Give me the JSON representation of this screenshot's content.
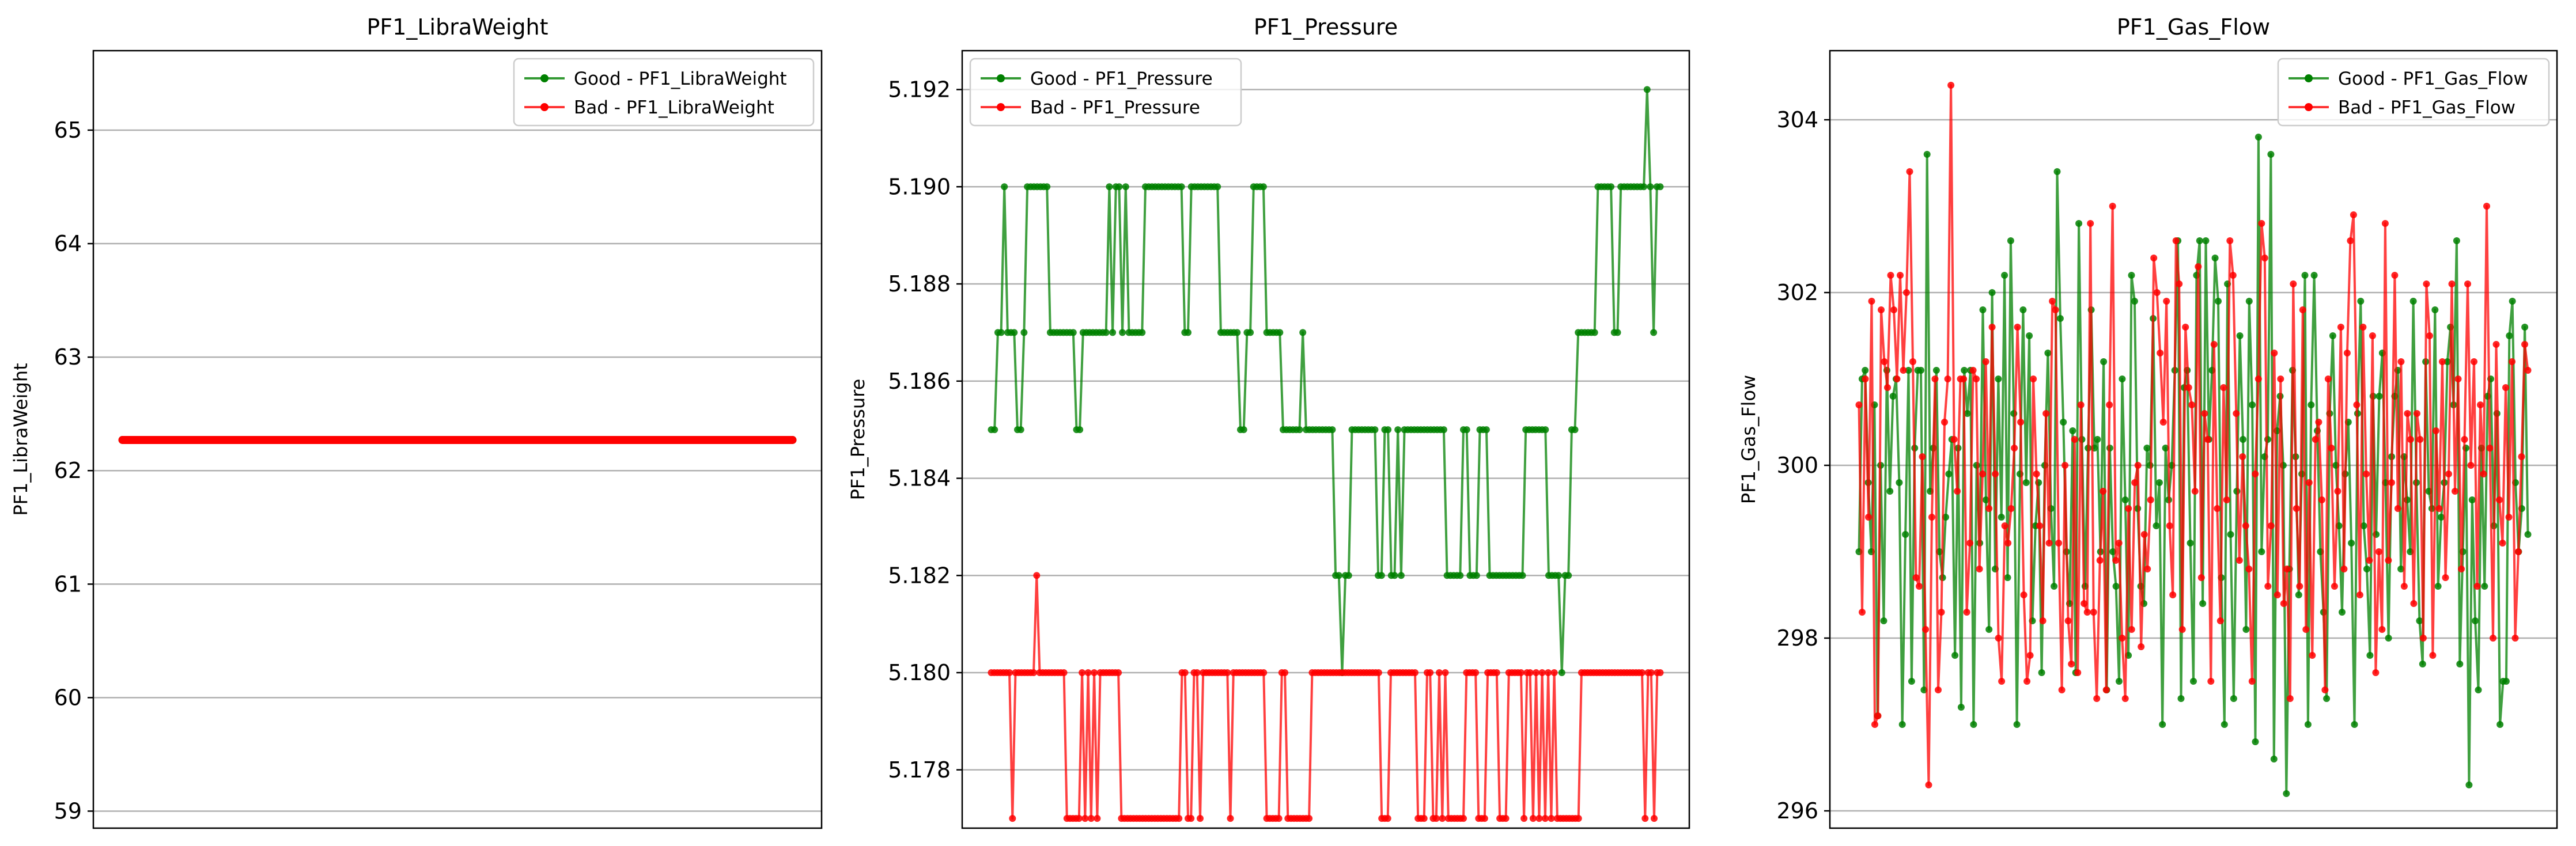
{
  "chart_data": [
    {
      "type": "line",
      "title": "PF1_LibraWeight",
      "xlabel": "",
      "ylabel": "PF1_LibraWeight",
      "ylim": [
        58.85,
        65.7
      ],
      "yticks": [
        59,
        60,
        61,
        62,
        63,
        64,
        65
      ],
      "ytick_labels": [
        "59",
        "60",
        "61",
        "62",
        "63",
        "64",
        "65"
      ],
      "x_range": [
        0,
        200
      ],
      "grid": "horizontal",
      "legend": "top-right",
      "series": [
        {
          "name": "Good - PF1_LibraWeight",
          "color": "#008000",
          "x": [
            0,
            200
          ],
          "values": [
            62.27,
            62.27
          ]
        },
        {
          "name": "Bad - PF1_LibraWeight",
          "color": "#ff0000",
          "x": [
            0,
            200
          ],
          "values": [
            62.27,
            62.27
          ]
        }
      ]
    },
    {
      "type": "line",
      "title": "PF1_Pressure",
      "xlabel": "",
      "ylabel": "PF1_Pressure",
      "ylim": [
        5.1768,
        5.1928
      ],
      "yticks": [
        5.178,
        5.18,
        5.182,
        5.184,
        5.186,
        5.188,
        5.19,
        5.192
      ],
      "ytick_labels": [
        "5.178",
        "5.180",
        "5.182",
        "5.184",
        "5.186",
        "5.188",
        "5.190",
        "5.192"
      ],
      "x_range": [
        0,
        200
      ],
      "grid": "horizontal",
      "legend": "top-left",
      "series": [
        {
          "name": "Good - PF1_Pressure",
          "color": "#008000",
          "values": [
            5.185,
            5.185,
            5.187,
            5.187,
            5.19,
            5.187,
            5.187,
            5.187,
            5.185,
            5.185,
            5.187,
            5.19,
            5.19,
            5.19,
            5.19,
            5.19,
            5.19,
            5.19,
            5.187,
            5.187,
            5.187,
            5.187,
            5.187,
            5.187,
            5.187,
            5.187,
            5.185,
            5.185,
            5.187,
            5.187,
            5.187,
            5.187,
            5.187,
            5.187,
            5.187,
            5.187,
            5.19,
            5.187,
            5.19,
            5.19,
            5.187,
            5.19,
            5.187,
            5.187,
            5.187,
            5.187,
            5.187,
            5.19,
            5.19,
            5.19,
            5.19,
            5.19,
            5.19,
            5.19,
            5.19,
            5.19,
            5.19,
            5.19,
            5.19,
            5.187,
            5.187,
            5.19,
            5.19,
            5.19,
            5.19,
            5.19,
            5.19,
            5.19,
            5.19,
            5.19,
            5.187,
            5.187,
            5.187,
            5.187,
            5.187,
            5.187,
            5.185,
            5.185,
            5.187,
            5.187,
            5.19,
            5.19,
            5.19,
            5.19,
            5.187,
            5.187,
            5.187,
            5.187,
            5.187,
            5.185,
            5.185,
            5.185,
            5.185,
            5.185,
            5.185,
            5.187,
            5.185,
            5.185,
            5.185,
            5.185,
            5.185,
            5.185,
            5.185,
            5.185,
            5.185,
            5.182,
            5.182,
            5.18,
            5.182,
            5.182,
            5.185,
            5.185,
            5.185,
            5.185,
            5.185,
            5.185,
            5.185,
            5.185,
            5.182,
            5.182,
            5.185,
            5.185,
            5.182,
            5.182,
            5.185,
            5.182,
            5.185,
            5.185,
            5.185,
            5.185,
            5.185,
            5.185,
            5.185,
            5.185,
            5.185,
            5.185,
            5.185,
            5.185,
            5.185,
            5.182,
            5.182,
            5.182,
            5.182,
            5.182,
            5.185,
            5.185,
            5.182,
            5.182,
            5.182,
            5.185,
            5.185,
            5.185,
            5.182,
            5.182,
            5.182,
            5.182,
            5.182,
            5.182,
            5.182,
            5.182,
            5.182,
            5.182,
            5.182,
            5.185,
            5.185,
            5.185,
            5.185,
            5.185,
            5.185,
            5.185,
            5.182,
            5.182,
            5.182,
            5.182,
            5.18,
            5.182,
            5.182,
            5.185,
            5.185,
            5.187,
            5.187,
            5.187,
            5.187,
            5.187,
            5.187,
            5.19,
            5.19,
            5.19,
            5.19,
            5.19,
            5.187,
            5.187,
            5.19,
            5.19,
            5.19,
            5.19,
            5.19,
            5.19,
            5.19,
            5.19,
            5.192,
            5.19,
            5.187,
            5.19,
            5.19
          ]
        },
        {
          "name": "Bad - PF1_Pressure",
          "color": "#ff0000",
          "values": [
            5.18,
            5.18,
            5.18,
            5.18,
            5.18,
            5.18,
            5.18,
            5.177,
            5.18,
            5.18,
            5.18,
            5.18,
            5.18,
            5.18,
            5.18,
            5.182,
            5.18,
            5.18,
            5.18,
            5.18,
            5.18,
            5.18,
            5.18,
            5.18,
            5.18,
            5.177,
            5.177,
            5.177,
            5.177,
            5.177,
            5.18,
            5.177,
            5.18,
            5.177,
            5.18,
            5.177,
            5.18,
            5.18,
            5.18,
            5.18,
            5.18,
            5.18,
            5.18,
            5.177,
            5.177,
            5.177,
            5.177,
            5.177,
            5.177,
            5.177,
            5.177,
            5.177,
            5.177,
            5.177,
            5.177,
            5.177,
            5.177,
            5.177,
            5.177,
            5.177,
            5.177,
            5.177,
            5.177,
            5.18,
            5.18,
            5.177,
            5.177,
            5.18,
            5.18,
            5.177,
            5.18,
            5.18,
            5.18,
            5.18,
            5.18,
            5.18,
            5.18,
            5.18,
            5.18,
            5.177,
            5.18,
            5.18,
            5.18,
            5.18,
            5.18,
            5.18,
            5.18,
            5.18,
            5.18,
            5.18,
            5.18,
            5.177,
            5.177,
            5.177,
            5.177,
            5.177,
            5.18,
            5.18,
            5.177,
            5.177,
            5.177,
            5.177,
            5.177,
            5.177,
            5.177,
            5.177,
            5.18,
            5.18,
            5.18,
            5.18,
            5.18,
            5.18,
            5.18,
            5.18,
            5.18,
            5.18,
            5.18,
            5.18,
            5.18,
            5.18,
            5.18,
            5.18,
            5.18,
            5.18,
            5.18,
            5.18,
            5.18,
            5.18,
            5.18,
            5.177,
            5.177,
            5.177,
            5.18,
            5.18,
            5.18,
            5.18,
            5.18,
            5.18,
            5.18,
            5.18,
            5.18,
            5.177,
            5.177,
            5.177,
            5.18,
            5.18,
            5.177,
            5.177,
            5.18,
            5.177,
            5.18,
            5.177,
            5.177,
            5.177,
            5.177,
            5.177,
            5.177,
            5.18,
            5.18,
            5.18,
            5.18,
            5.177,
            5.177,
            5.177,
            5.18,
            5.18,
            5.18,
            5.18,
            5.177,
            5.177,
            5.177,
            5.18,
            5.18,
            5.18,
            5.18,
            5.18,
            5.177,
            5.18,
            5.18,
            5.177,
            5.18,
            5.177,
            5.18,
            5.177,
            5.18,
            5.177,
            5.18,
            5.177,
            5.177,
            5.177,
            5.177,
            5.177,
            5.177,
            5.177,
            5.177,
            5.18,
            5.18,
            5.18,
            5.18,
            5.18,
            5.18,
            5.18,
            5.18,
            5.18,
            5.18,
            5.18,
            5.18,
            5.18,
            5.18,
            5.18,
            5.18,
            5.18,
            5.18,
            5.18,
            5.18,
            5.18,
            5.177,
            5.18,
            5.18,
            5.177,
            5.18,
            5.18
          ]
        }
      ]
    },
    {
      "type": "line",
      "title": "PF1_Gas_Flow",
      "xlabel": "",
      "ylabel": "PF1_Gas_Flow",
      "ylim": [
        295.8,
        304.8
      ],
      "yticks": [
        296,
        298,
        300,
        302,
        304
      ],
      "ytick_labels": [
        "296",
        "298",
        "300",
        "302",
        "304"
      ],
      "x_range": [
        0,
        200
      ],
      "grid": "horizontal",
      "legend": "top-right",
      "series": [
        {
          "name": "Good - PF1_Gas_Flow",
          "color": "#008000",
          "values": [
            299.0,
            301.0,
            301.1,
            299.8,
            299.0,
            300.7,
            297.1,
            300.0,
            298.2,
            301.1,
            299.7,
            300.8,
            301.0,
            299.8,
            297.0,
            299.2,
            301.1,
            297.5,
            300.2,
            301.1,
            301.1,
            297.4,
            303.6,
            299.7,
            300.2,
            301.1,
            299.0,
            298.7,
            299.4,
            299.9,
            300.3,
            297.8,
            300.2,
            297.2,
            301.1,
            300.6,
            301.1,
            297.0,
            300.0,
            299.1,
            301.8,
            299.6,
            298.1,
            302.0,
            298.8,
            301.0,
            299.4,
            302.2,
            298.7,
            302.6,
            300.6,
            297.0,
            299.9,
            301.8,
            299.8,
            301.5,
            298.2,
            299.3,
            299.8,
            297.6,
            300.0,
            301.3,
            299.5,
            298.6,
            303.4,
            301.7,
            300.5,
            299.0,
            298.4,
            300.4,
            297.6,
            302.8,
            300.3,
            298.6,
            300.2,
            301.8,
            300.2,
            300.3,
            299.0,
            301.2,
            297.4,
            300.2,
            299.0,
            298.6,
            297.5,
            301.0,
            299.6,
            297.8,
            302.2,
            301.9,
            299.5,
            298.6,
            298.4,
            300.2,
            300.0,
            301.7,
            299.3,
            299.8,
            297.0,
            300.2,
            299.6,
            300.0,
            301.1,
            302.6,
            297.3,
            300.9,
            301.1,
            299.1,
            297.5,
            302.2,
            302.6,
            298.4,
            302.6,
            300.3,
            301.1,
            302.4,
            301.9,
            298.7,
            297.0,
            302.1,
            299.2,
            297.3,
            299.7,
            301.5,
            300.3,
            298.1,
            301.9,
            300.7,
            296.8,
            303.8,
            299.0,
            300.1,
            300.3,
            303.6,
            296.6,
            300.4,
            300.8,
            300.0,
            296.2,
            298.8,
            301.1,
            300.1,
            298.5,
            299.9,
            302.2,
            297.0,
            300.7,
            302.2,
            300.4,
            299.0,
            298.3,
            297.3,
            300.6,
            301.5,
            300.0,
            299.3,
            298.3,
            299.9,
            300.5,
            299.1,
            297.0,
            300.6,
            301.9,
            299.3,
            298.8,
            297.8,
            300.8,
            299.2,
            300.8,
            301.3,
            299.8,
            298.0,
            300.1,
            300.8,
            301.1,
            298.8,
            300.1,
            299.6,
            299.0,
            301.9,
            299.8,
            298.2,
            297.7,
            301.2,
            299.7,
            299.5,
            301.8,
            298.6,
            299.4,
            299.8,
            301.2,
            301.6,
            300.7,
            302.6,
            297.7,
            299.0,
            300.2,
            296.3,
            299.6,
            298.2,
            297.4,
            300.2,
            298.6,
            300.8,
            301.0,
            299.3,
            300.6,
            297.0,
            297.5,
            297.5,
            301.5,
            301.9,
            299.8,
            299.0,
            299.5,
            301.6,
            299.2
          ]
        },
        {
          "name": "Bad - PF1_Gas_Flow",
          "color": "#ff0000",
          "values": [
            300.7,
            298.3,
            301.0,
            299.4,
            301.9,
            297.0,
            297.1,
            301.8,
            301.2,
            300.9,
            302.2,
            301.8,
            301.0,
            302.2,
            301.1,
            302.0,
            303.4,
            301.2,
            298.7,
            298.6,
            300.1,
            298.1,
            296.3,
            299.4,
            301.0,
            297.4,
            298.3,
            300.5,
            301.0,
            304.4,
            300.3,
            299.7,
            301.0,
            301.0,
            298.3,
            299.1,
            301.1,
            301.0,
            298.8,
            299.9,
            301.2,
            299.5,
            301.6,
            299.9,
            298.0,
            297.5,
            299.3,
            299.1,
            299.5,
            300.2,
            301.6,
            300.5,
            298.5,
            297.5,
            297.8,
            301.0,
            299.9,
            299.3,
            298.2,
            300.6,
            299.1,
            301.9,
            301.8,
            299.1,
            297.4,
            300.0,
            298.2,
            297.7,
            300.3,
            297.6,
            300.7,
            298.4,
            298.3,
            302.8,
            298.3,
            297.3,
            298.9,
            299.7,
            297.4,
            300.7,
            303.0,
            298.9,
            299.1,
            298.0,
            297.3,
            299.5,
            298.1,
            299.8,
            300.0,
            297.9,
            299.2,
            298.8,
            299.6,
            302.4,
            302.0,
            301.3,
            300.5,
            301.9,
            299.3,
            298.5,
            302.6,
            302.1,
            298.1,
            301.6,
            300.9,
            300.7,
            299.7,
            302.3,
            298.7,
            300.6,
            300.3,
            297.5,
            301.4,
            299.5,
            298.2,
            300.9,
            299.6,
            302.6,
            302.2,
            300.6,
            298.9,
            300.1,
            299.3,
            298.8,
            297.5,
            299.9,
            301.0,
            302.8,
            302.4,
            298.6,
            299.3,
            301.3,
            298.5,
            301.0,
            298.4,
            298.8,
            297.3,
            302.1,
            299.5,
            298.6,
            301.8,
            298.1,
            299.8,
            297.8,
            300.3,
            300.5,
            299.6,
            297.4,
            301.0,
            300.2,
            298.6,
            299.7,
            301.6,
            298.8,
            301.3,
            302.6,
            302.9,
            300.7,
            298.5,
            301.6,
            299.9,
            298.9,
            301.5,
            297.6,
            299.0,
            298.1,
            302.8,
            298.9,
            299.8,
            302.2,
            299.5,
            301.2,
            298.6,
            300.6,
            300.3,
            298.4,
            300.6,
            300.3,
            298.0,
            302.1,
            301.5,
            297.8,
            300.4,
            299.5,
            301.2,
            298.7,
            299.9,
            302.1,
            299.7,
            301.0,
            298.8,
            300.3,
            302.1,
            300.0,
            301.2,
            298.6,
            300.7,
            299.9,
            303.0,
            300.2,
            298.0,
            301.4,
            299.6,
            299.1,
            300.9,
            299.4,
            301.2,
            298.0,
            299.0,
            300.1,
            301.4,
            301.1
          ]
        }
      ]
    }
  ]
}
